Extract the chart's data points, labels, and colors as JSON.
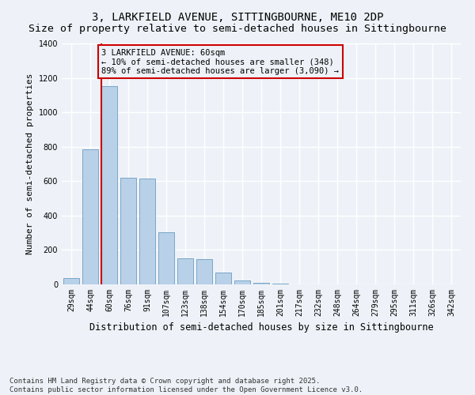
{
  "title": "3, LARKFIELD AVENUE, SITTINGBOURNE, ME10 2DP",
  "subtitle": "Size of property relative to semi-detached houses in Sittingbourne",
  "xlabel": "Distribution of semi-detached houses by size in Sittingbourne",
  "ylabel": "Number of semi-detached properties",
  "categories": [
    "29sqm",
    "44sqm",
    "60sqm",
    "76sqm",
    "91sqm",
    "107sqm",
    "123sqm",
    "138sqm",
    "154sqm",
    "170sqm",
    "185sqm",
    "201sqm",
    "217sqm",
    "232sqm",
    "248sqm",
    "264sqm",
    "279sqm",
    "295sqm",
    "311sqm",
    "326sqm",
    "342sqm"
  ],
  "values": [
    35,
    785,
    1150,
    620,
    615,
    305,
    150,
    145,
    70,
    25,
    10,
    5,
    2,
    0,
    0,
    0,
    0,
    0,
    0,
    0,
    0
  ],
  "bar_color": "#b8d0e8",
  "bar_edge_color": "#6a9dc0",
  "highlight_bar_index": 2,
  "highlight_color": "#cc0000",
  "annotation_text": "3 LARKFIELD AVENUE: 60sqm\n← 10% of semi-detached houses are smaller (348)\n89% of semi-detached houses are larger (3,090) →",
  "annotation_box_color": "#cc0000",
  "background_color": "#eef2f8",
  "grid_color": "#ffffff",
  "footer_text": "Contains HM Land Registry data © Crown copyright and database right 2025.\nContains public sector information licensed under the Open Government Licence v3.0.",
  "ylim": [
    0,
    1400
  ],
  "title_fontsize": 10,
  "xlabel_fontsize": 8.5,
  "ylabel_fontsize": 8,
  "tick_fontsize": 7,
  "annotation_fontsize": 7.5,
  "footer_fontsize": 6.5
}
